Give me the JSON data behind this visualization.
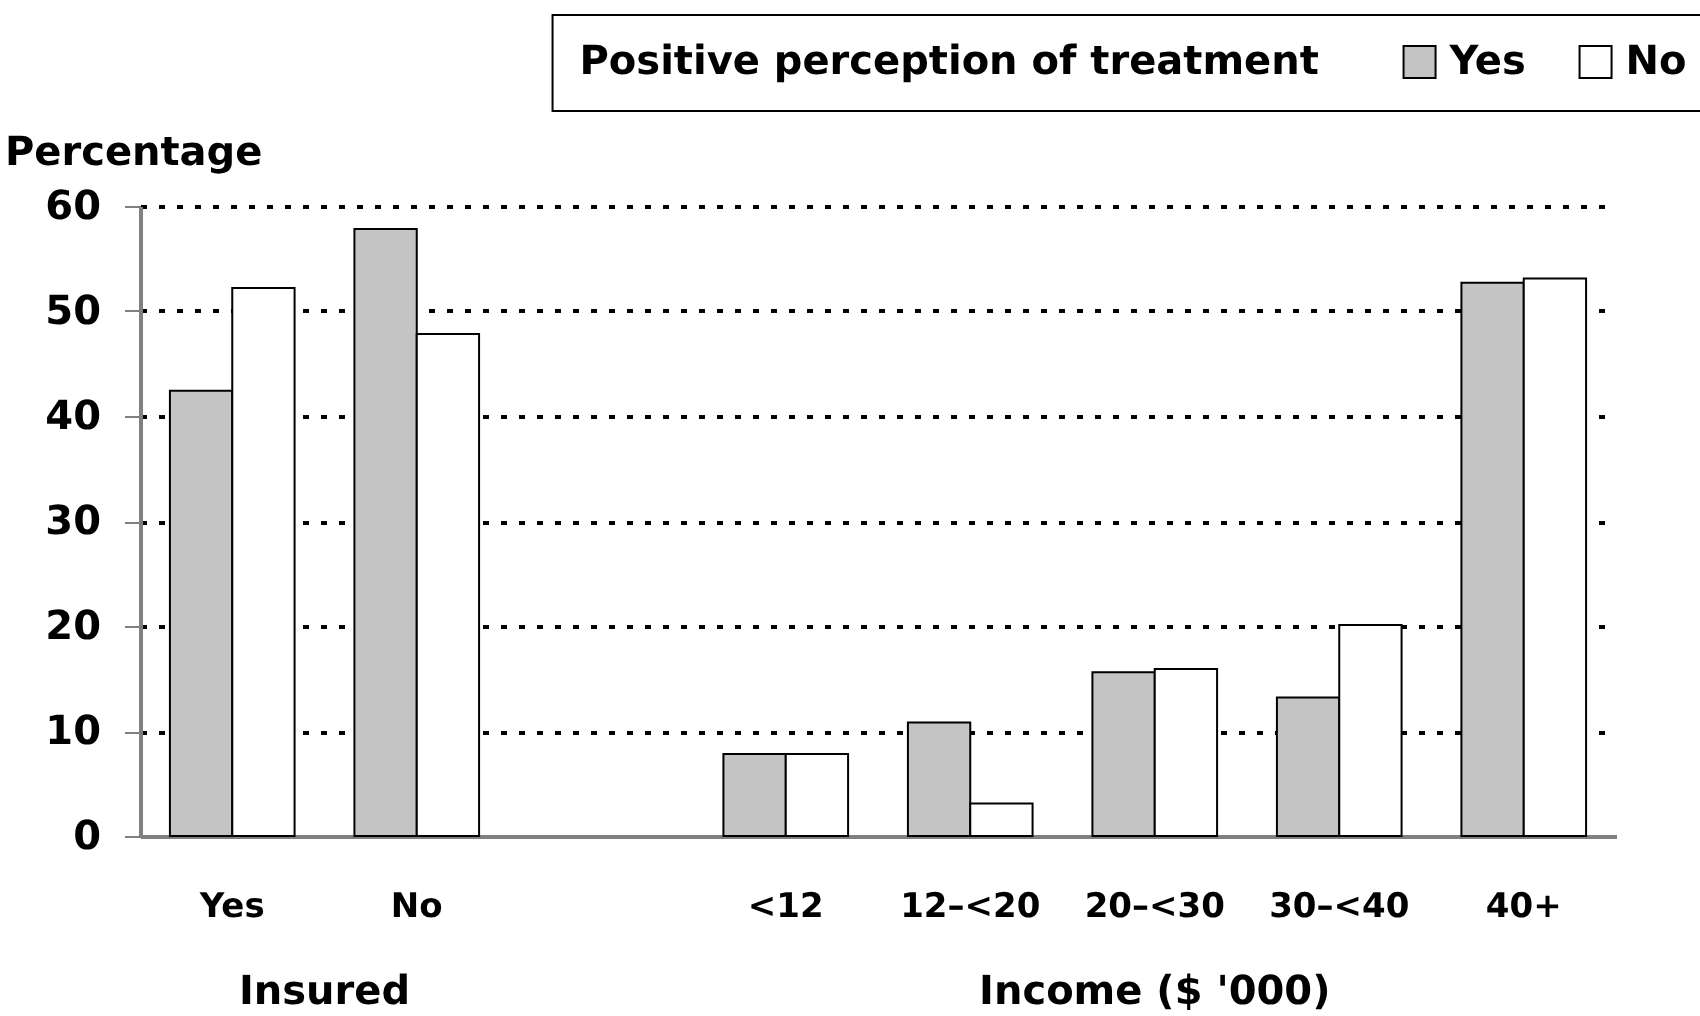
{
  "chart_data": {
    "type": "bar",
    "categories": [
      "Yes",
      "No",
      null,
      "<12",
      "12–<20",
      "20–<30",
      "30–<40",
      "40+"
    ],
    "series": [
      {
        "name": "Yes",
        "color": "#c4c4c4",
        "values": [
          42.4,
          57.8,
          null,
          7.8,
          10.8,
          15.6,
          13.2,
          52.7
        ]
      },
      {
        "name": "No",
        "color": "#ffffff",
        "values": [
          52.2,
          47.8,
          null,
          7.8,
          3.1,
          15.9,
          20.1,
          53.1
        ]
      }
    ],
    "ylabel": "Percentage",
    "legend_title": "Positive perception of treatment",
    "legend": "top right",
    "annotations": [
      "Insured",
      "Income ($ '000)"
    ],
    "ylim": [
      0,
      60
    ],
    "yticks": [
      0,
      10,
      20,
      30,
      40,
      50,
      60
    ],
    "grid": "y"
  }
}
